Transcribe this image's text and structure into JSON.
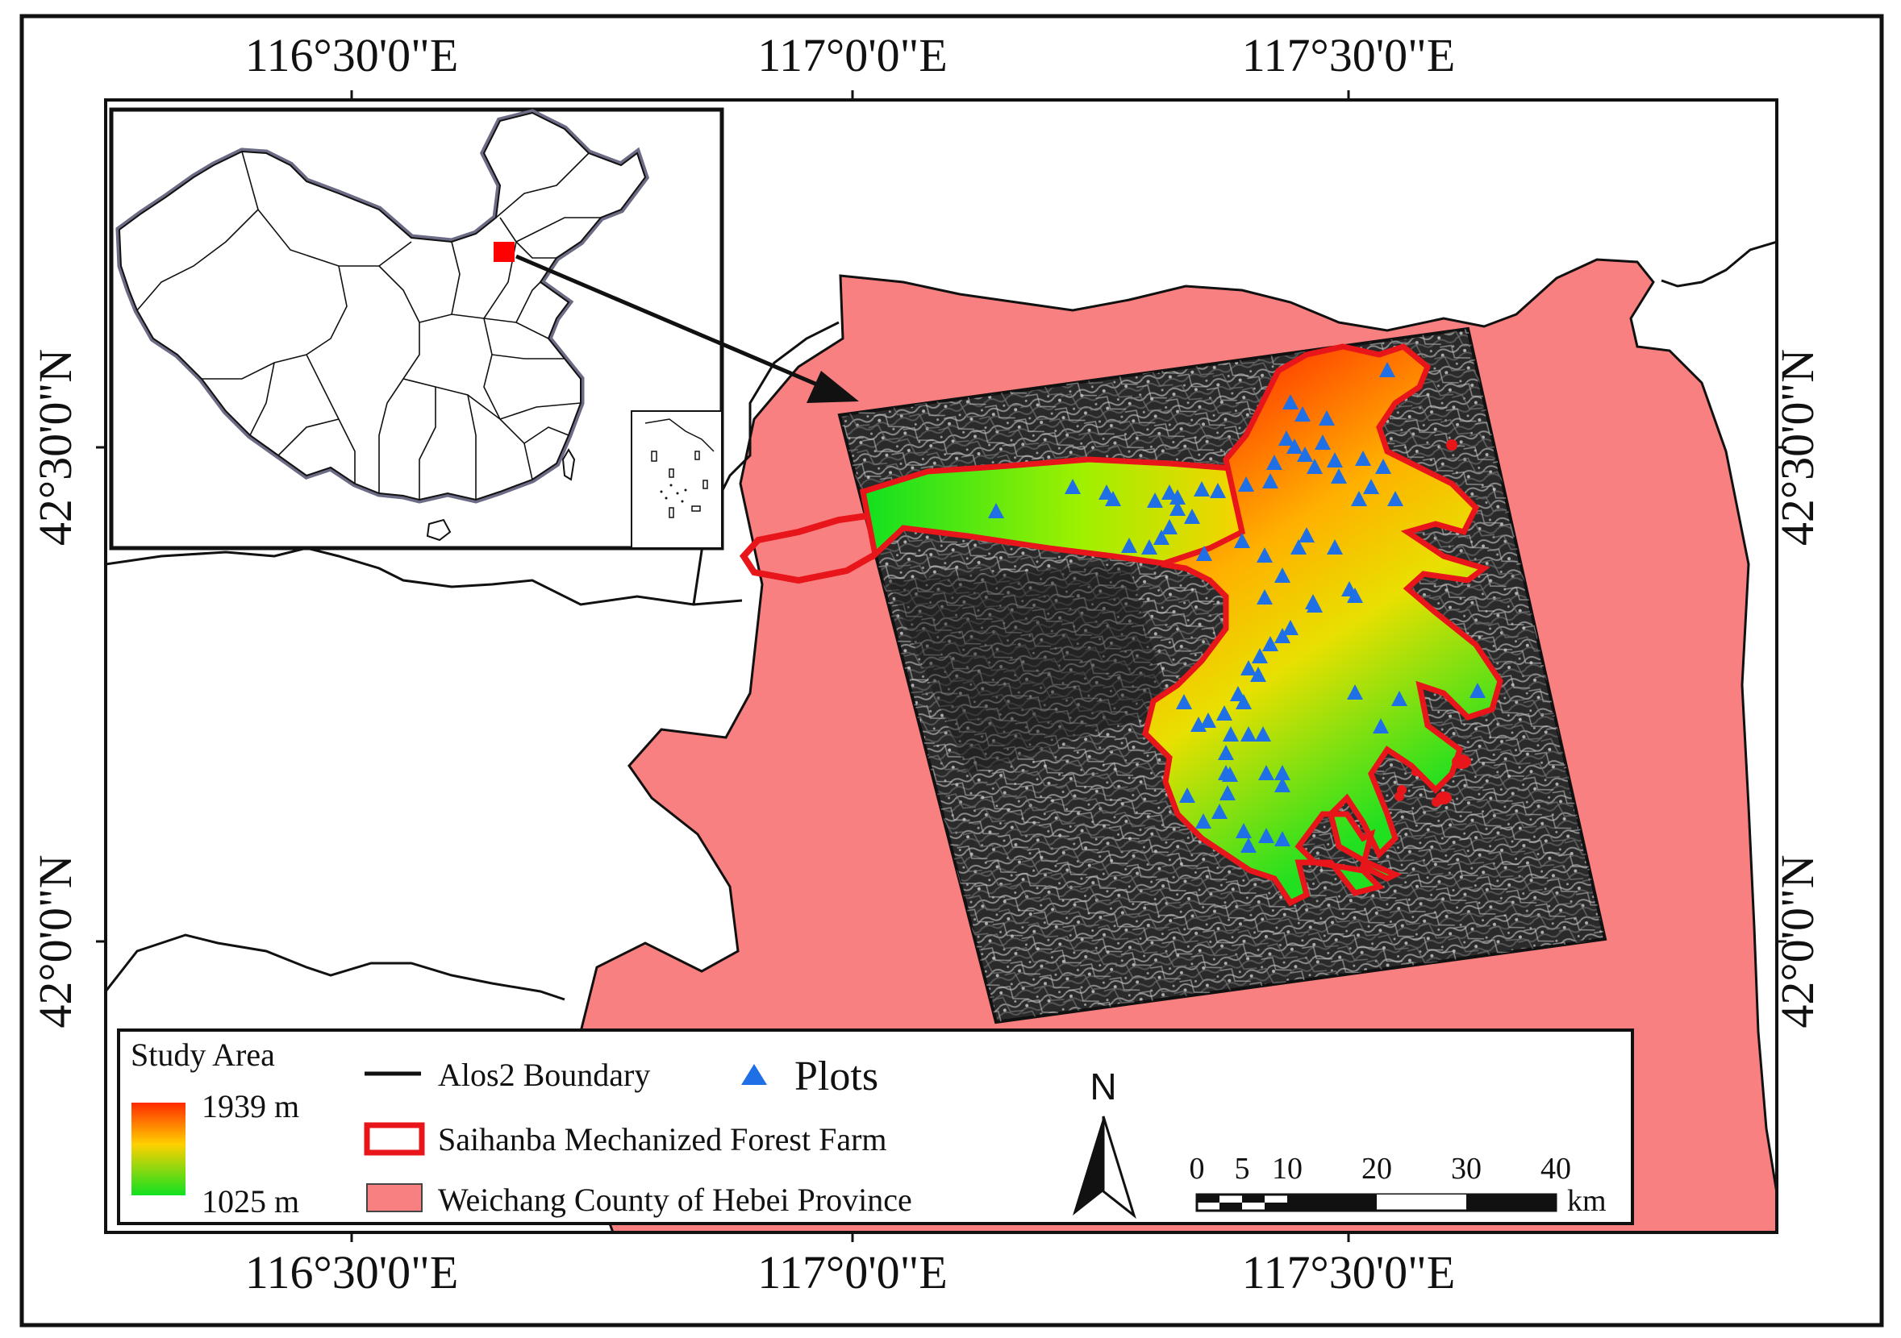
{
  "map": {
    "axes": {
      "top_lon": [
        "116°30'0\"E",
        "117°0'0\"E",
        "117°30'0\"E"
      ],
      "bottom_lon": [
        "116°30'0\"E",
        "117°0'0\"E",
        "117°30'0\"E"
      ],
      "left_lat": [
        "42°30'0\"N",
        "42°0'0\"N"
      ],
      "right_lat": [
        "42°30'0\"N",
        "42°0'0\"N"
      ]
    },
    "legend": {
      "title": "Study Area",
      "elev_high": "1939 m",
      "elev_low": "1025 m",
      "alos2": "Alos2 Boundary",
      "plots": "Plots",
      "farm": "Saihanba Mechanized Forest Farm",
      "county": "Weichang County of Hebei Province"
    },
    "north_label": "N",
    "scale_bar": {
      "labels": [
        "0",
        "5",
        "10",
        "20",
        "30",
        "40"
      ],
      "unit": "km"
    },
    "colors": {
      "county_fill": "#f98080",
      "farm_outline": "#e8151a",
      "elev_high": "#ff2a00",
      "elev_mid": "#ffd400",
      "elev_low": "#10e020",
      "plot_marker": "#1f6fe6",
      "inset_marker": "#ff0000"
    }
  }
}
